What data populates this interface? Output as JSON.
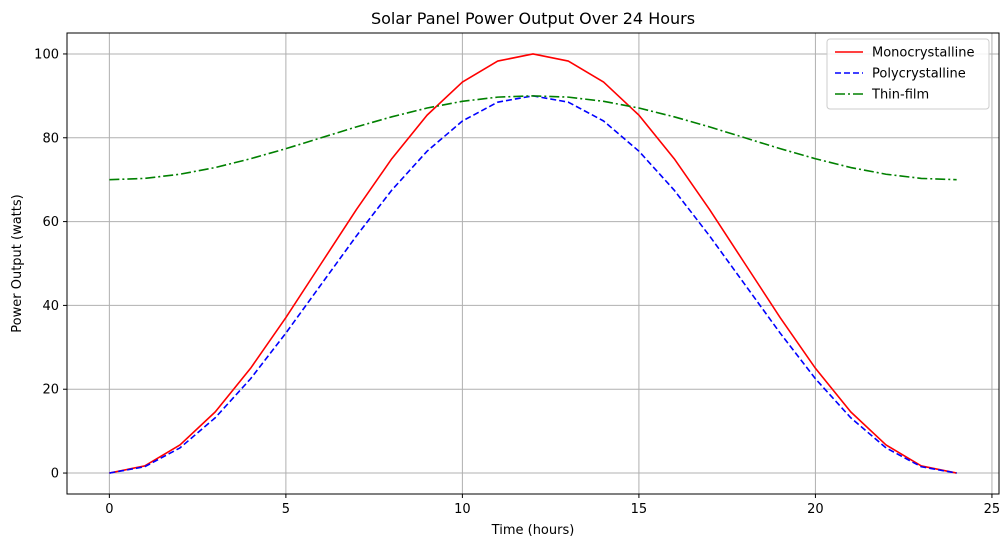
{
  "chart_data": {
    "type": "line",
    "title": "Solar Panel Power Output Over 24 Hours",
    "xlabel": "Time (hours)",
    "ylabel": "Power Output (watts)",
    "xlim": [
      -1.2,
      25.2
    ],
    "ylim": [
      -5,
      105
    ],
    "x_ticks": [
      0,
      5,
      10,
      15,
      20,
      25
    ],
    "y_ticks": [
      0,
      20,
      40,
      60,
      80,
      100
    ],
    "grid": true,
    "legend_position": "top-right",
    "x": [
      0,
      1,
      2,
      3,
      4,
      5,
      6,
      7,
      8,
      9,
      10,
      11,
      12,
      13,
      14,
      15,
      16,
      17,
      18,
      19,
      20,
      21,
      22,
      23,
      24
    ],
    "series": [
      {
        "name": "Monocrystalline",
        "color": "#ff0000",
        "style": "solid",
        "values": [
          0.0,
          1.7,
          6.7,
          14.6,
          25.0,
          37.1,
          50.0,
          62.9,
          75.0,
          85.4,
          93.3,
          98.3,
          100.0,
          98.3,
          93.3,
          85.4,
          75.0,
          62.9,
          50.0,
          37.1,
          25.0,
          14.6,
          6.7,
          1.7,
          0.0
        ]
      },
      {
        "name": "Polycrystalline",
        "color": "#0000ff",
        "style": "dashed",
        "values": [
          0.0,
          1.5,
          6.0,
          13.2,
          22.5,
          33.4,
          45.0,
          56.6,
          67.5,
          76.8,
          84.0,
          88.5,
          90.0,
          88.5,
          84.0,
          76.8,
          67.5,
          56.6,
          45.0,
          33.4,
          22.5,
          13.2,
          6.0,
          1.5,
          0.0
        ]
      },
      {
        "name": "Thin-film",
        "color": "#008000",
        "style": "dashdot",
        "values": [
          70.0,
          70.3,
          71.3,
          72.9,
          75.0,
          77.4,
          80.0,
          82.6,
          85.0,
          87.1,
          88.7,
          89.7,
          90.0,
          89.7,
          88.7,
          87.1,
          85.0,
          82.6,
          80.0,
          77.4,
          75.0,
          72.9,
          71.3,
          70.3,
          70.0
        ]
      }
    ]
  }
}
